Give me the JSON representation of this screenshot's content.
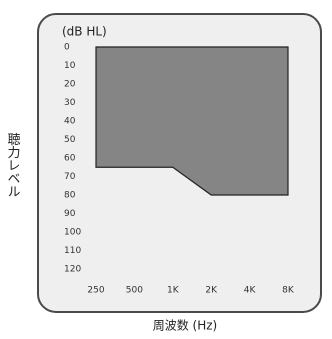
{
  "chart_data": {
    "type": "area",
    "unit_label": "(dB HL)",
    "ylabel": "聴力レベル",
    "xlabel": "周波数 (Hz)",
    "categories": [
      "250",
      "500",
      "1K",
      "2K",
      "4K",
      "8K"
    ],
    "values": [
      65,
      65,
      65,
      80,
      80,
      80
    ],
    "color": "#858585",
    "ylim": [
      0,
      120
    ],
    "yticks": [
      0,
      10,
      20,
      30,
      40,
      50,
      60,
      70,
      80,
      90,
      100,
      110,
      120
    ],
    "y_inverted": true
  }
}
